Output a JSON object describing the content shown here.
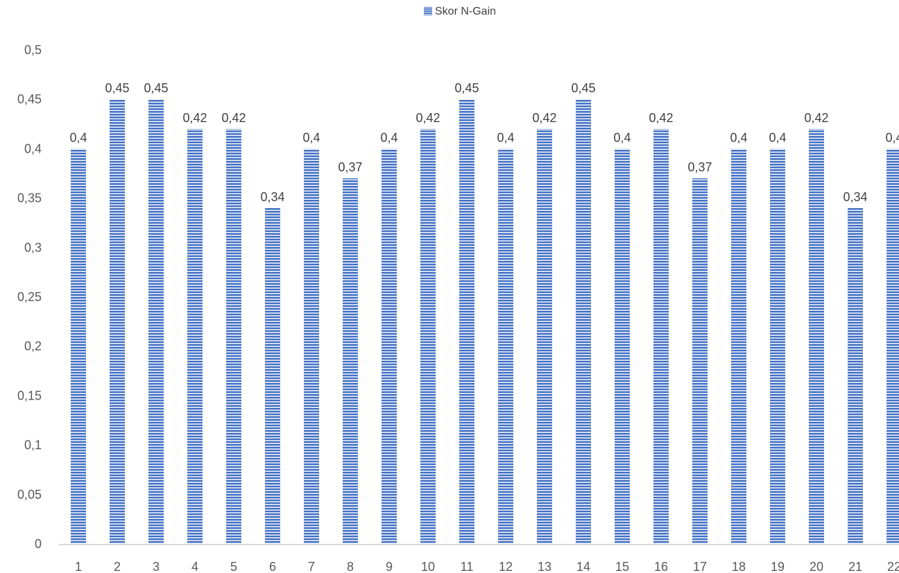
{
  "chart_data": {
    "type": "bar",
    "categories": [
      "1",
      "2",
      "3",
      "4",
      "5",
      "6",
      "7",
      "8",
      "9",
      "10",
      "11",
      "12",
      "13",
      "14",
      "15",
      "16",
      "17",
      "18",
      "19",
      "20",
      "21",
      "22"
    ],
    "series": [
      {
        "name": "Skor N-Gain",
        "values": [
          0.4,
          0.45,
          0.45,
          0.42,
          0.42,
          0.34,
          0.4,
          0.37,
          0.4,
          0.42,
          0.45,
          0.4,
          0.42,
          0.45,
          0.4,
          0.42,
          0.37,
          0.4,
          0.4,
          0.42,
          0.34,
          0.4
        ],
        "value_labels": [
          "0,4",
          "0,45",
          "0,45",
          "0,42",
          "0,42",
          "0,34",
          "0,4",
          "0,37",
          "0,4",
          "0,42",
          "0,45",
          "0,4",
          "0,42",
          "0,45",
          "0,4",
          "0,42",
          "0,37",
          "0,4",
          "0,4",
          "0,42",
          "0,34",
          "0,4"
        ]
      }
    ],
    "yticks": [
      0,
      0.05,
      0.1,
      0.15,
      0.2,
      0.25,
      0.3,
      0.35,
      0.4,
      0.45,
      0.5
    ],
    "ytick_labels": [
      "0",
      "0,05",
      "0,1",
      "0,15",
      "0,2",
      "0,25",
      "0,3",
      "0,35",
      "0,4",
      "0,45",
      "0,5"
    ],
    "ylim": [
      0,
      0.5
    ],
    "legend": {
      "placement": "top-center"
    },
    "grid": false,
    "colors": {
      "bar_fill": "#4472C4",
      "bar_stripe": "#ffffff",
      "axis_line": "#d9d9d9",
      "tick_text": "#595959",
      "label_text": "#404040"
    }
  }
}
